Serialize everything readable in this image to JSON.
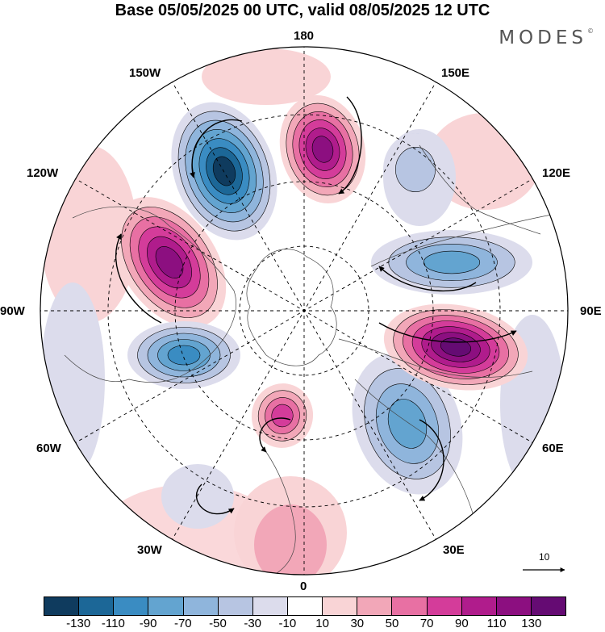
{
  "title": "Base 05/05/2025 00 UTC, valid 08/05/2025 12 UTC",
  "brand": "MODES",
  "brand_mark": "©",
  "longitude_labels": {
    "lon_180": "180",
    "lon_150e": "150E",
    "lon_120e": "120E",
    "lon_90e": "90E",
    "lon_60e": "60E",
    "lon_30e": "30E",
    "lon_0": "0",
    "lon_30w": "30W",
    "lon_60w": "60W",
    "lon_90w": "90W",
    "lon_120w": "120W",
    "lon_150w": "150W"
  },
  "vector_reference": "10",
  "colorbar": {
    "colors": [
      "#0f3b5e",
      "#1c6797",
      "#3a8cc2",
      "#63a4d0",
      "#8fb5dc",
      "#b7c5e2",
      "#dcdcec",
      "#ffffff",
      "#f9d4d6",
      "#f2a7b8",
      "#e870a3",
      "#d43c9a",
      "#b01c8c",
      "#8c0f80",
      "#650b73"
    ],
    "ticks": [
      "-130",
      "-110",
      "-90",
      "-70",
      "-50",
      "-30",
      "-10",
      "10",
      "30",
      "50",
      "70",
      "90",
      "110",
      "130"
    ]
  },
  "anomaly_centers": [
    {
      "name": "pink-180",
      "sign": "positive",
      "level": 110
    },
    {
      "name": "blue-160w",
      "sign": "negative",
      "level": -130
    },
    {
      "name": "pink-115w",
      "sign": "positive",
      "level": 110
    },
    {
      "name": "blue-70w",
      "sign": "negative",
      "level": -90
    },
    {
      "name": "pink-15w",
      "sign": "positive",
      "level": 70
    },
    {
      "name": "blue-45e",
      "sign": "negative",
      "level": -70
    },
    {
      "name": "pink-90e",
      "sign": "positive",
      "level": 130
    },
    {
      "name": "blue-115e",
      "sign": "negative",
      "level": -70
    },
    {
      "name": "blue-160e",
      "sign": "negative",
      "level": -30
    }
  ]
}
